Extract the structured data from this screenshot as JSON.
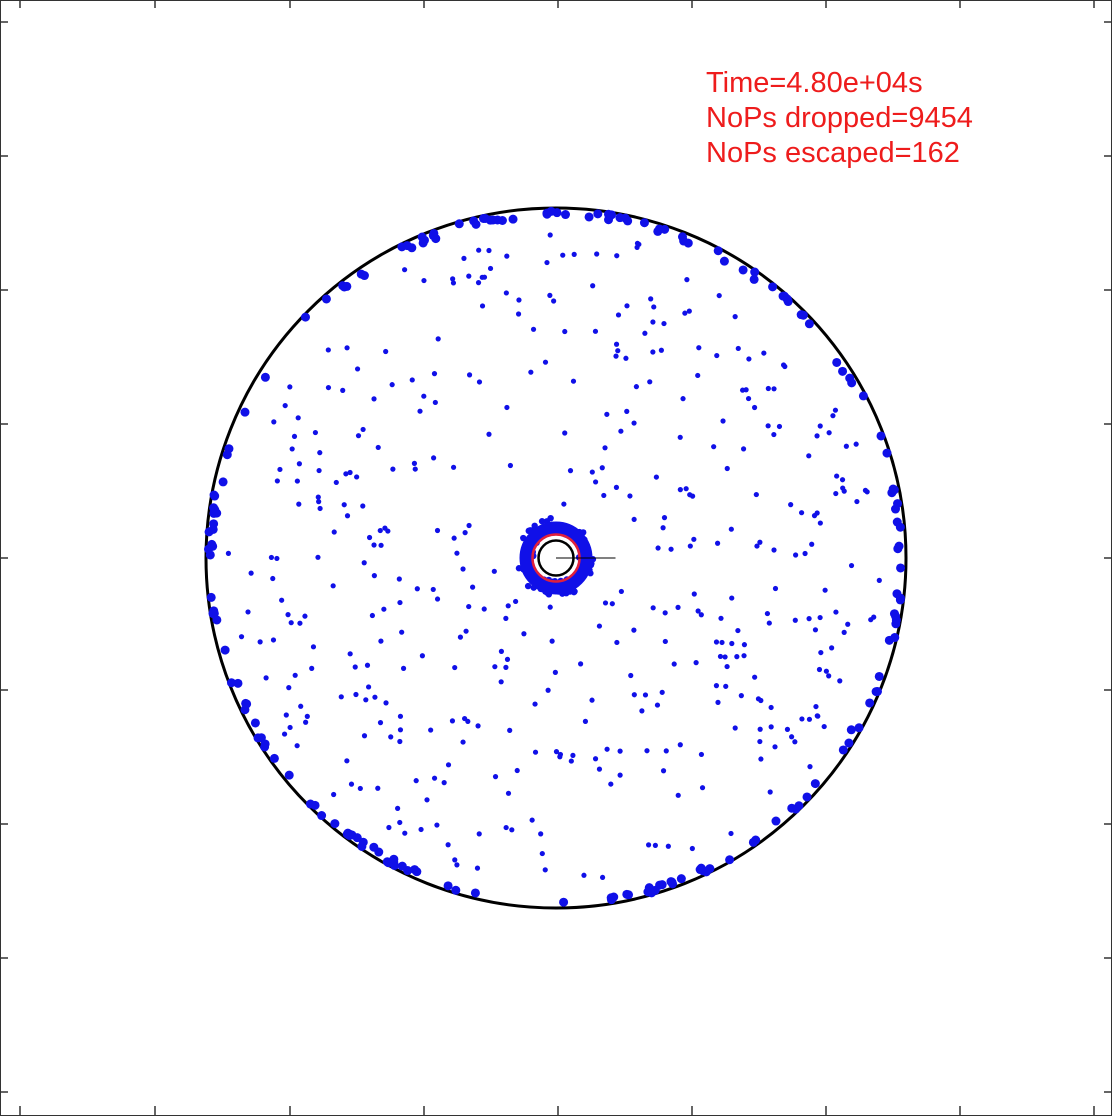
{
  "colors": {
    "particles": "#1010e8",
    "text": "#ee1c1c",
    "outer_circle": "#000000",
    "inner_ring": "#e0203c"
  },
  "annotation": {
    "time": "Time=4.80e+04s",
    "dropped": "NoPs dropped=9454",
    "escaped": "NoPs escaped=162"
  },
  "chart_data": {
    "type": "scatter",
    "title": "",
    "xlabel": "",
    "ylabel": "",
    "xlim": [
      -1.6,
      1.6
    ],
    "ylim": [
      -1.6,
      1.6
    ],
    "grid": false,
    "tick_labels": "none",
    "outer_circle_radius": 1.0,
    "inner_circle_radius": 0.05,
    "scattered_particle_count": 420,
    "near_source_particle_count": 90,
    "boundary_particle_count": 220,
    "series": [
      {
        "name": "",
        "description": "particles at time 4.80e+04s"
      }
    ]
  }
}
